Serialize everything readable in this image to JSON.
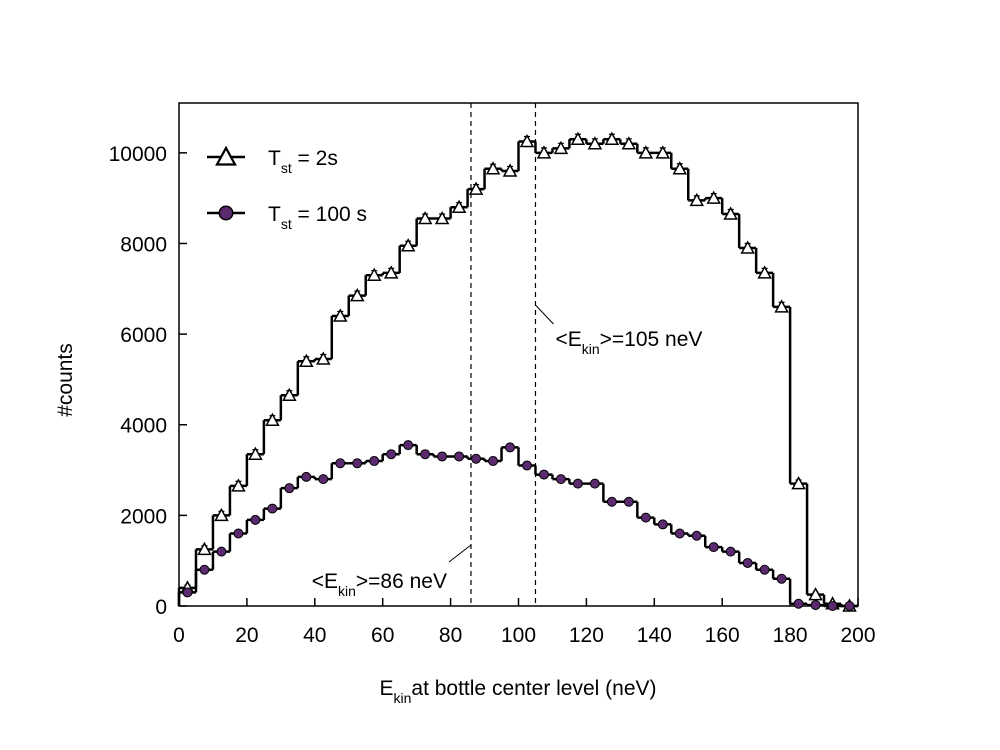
{
  "chart_data": {
    "type": "histogram",
    "xlabel": [
      "E",
      "kin",
      "at bottle center level (neV)"
    ],
    "ylabel": "#counts",
    "bins": [
      0,
      5,
      10,
      15,
      20,
      25,
      30,
      35,
      40,
      45,
      50,
      55,
      60,
      65,
      70,
      75,
      80,
      85,
      90,
      95,
      100,
      105,
      110,
      115,
      120,
      125,
      130,
      135,
      140,
      145,
      150,
      155,
      160,
      165,
      170,
      175,
      180,
      185,
      190,
      195,
      200
    ],
    "xlim": [
      0,
      200
    ],
    "xticks": [
      0,
      20,
      40,
      60,
      80,
      100,
      120,
      140,
      160,
      180,
      200
    ],
    "ylim": [
      0,
      11100
    ],
    "yticks": [
      0,
      2000,
      4000,
      6000,
      8000,
      10000
    ],
    "legend": "upper left",
    "series": [
      {
        "name": [
          "T",
          "st",
          " = 2s"
        ],
        "color": "#000000",
        "marker": "triangle",
        "marker_fill": "#ffffff",
        "values": [
          400,
          1250,
          2000,
          2650,
          3350,
          4100,
          4650,
          5400,
          5450,
          6400,
          6850,
          7300,
          7350,
          7950,
          8550,
          8550,
          8800,
          9200,
          9650,
          9600,
          10250,
          10000,
          10100,
          10300,
          10200,
          10300,
          10200,
          10000,
          10000,
          9650,
          8950,
          9000,
          8650,
          7900,
          7350,
          6600,
          2700,
          250,
          50,
          0
        ],
        "errors": [
          60,
          80,
          90,
          100,
          100,
          100,
          100,
          100,
          100,
          100,
          100,
          100,
          100,
          100,
          100,
          100,
          100,
          100,
          100,
          100,
          110,
          110,
          110,
          110,
          110,
          110,
          110,
          110,
          110,
          110,
          100,
          100,
          100,
          100,
          100,
          100,
          80,
          50,
          30,
          20
        ]
      },
      {
        "name": [
          "T",
          "st",
          " = 100 s"
        ],
        "color": "#000000",
        "marker": "circle",
        "marker_fill": "#5b2a6e",
        "values": [
          300,
          800,
          1200,
          1600,
          1900,
          2150,
          2600,
          2850,
          2800,
          3150,
          3150,
          3200,
          3350,
          3550,
          3350,
          3300,
          3300,
          3250,
          3200,
          3500,
          3100,
          2900,
          2800,
          2700,
          2700,
          2300,
          2300,
          1950,
          1800,
          1600,
          1550,
          1300,
          1200,
          950,
          800,
          600,
          50,
          20,
          0,
          0
        ],
        "errors": [
          40,
          50,
          60,
          60,
          70,
          70,
          70,
          70,
          70,
          80,
          80,
          80,
          80,
          80,
          80,
          80,
          80,
          80,
          80,
          80,
          80,
          70,
          70,
          70,
          70,
          70,
          70,
          60,
          60,
          60,
          60,
          50,
          50,
          50,
          40,
          40,
          20,
          20,
          10,
          10
        ]
      }
    ],
    "annotations": [
      {
        "x": 86,
        "text": [
          "<E",
          "kin",
          ">=86 neV"
        ]
      },
      {
        "x": 105,
        "text": [
          "<E",
          "kin",
          ">=105 neV"
        ]
      }
    ]
  }
}
